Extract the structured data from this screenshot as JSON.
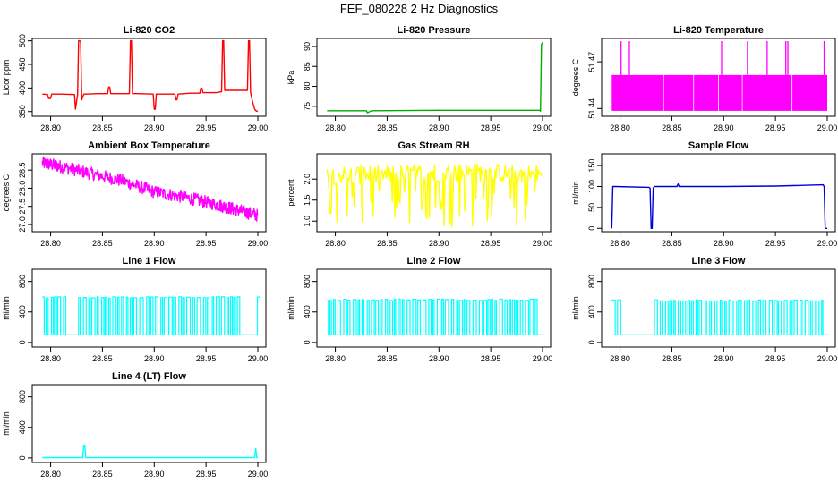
{
  "page_title": "FEF_080228  2 Hz Diagnostics",
  "x_axis": {
    "range": [
      28.79,
      29.0
    ],
    "ticks": [
      "28.80",
      "28.85",
      "28.90",
      "28.95",
      "29.00"
    ],
    "tick_values": [
      28.8,
      28.85,
      28.9,
      28.95,
      29.0
    ]
  },
  "chart_data": [
    {
      "id": "co2",
      "type": "line",
      "title": "Li-820 CO2",
      "ylabel": "Licor ppm",
      "color": "#ff0000",
      "yticks": [
        "350",
        "400",
        "450",
        "500"
      ],
      "ytick_values": [
        350,
        400,
        450,
        500
      ],
      "ylim": [
        340,
        505
      ],
      "series": [
        {
          "name": "CO2",
          "x": [
            28.792,
            28.797,
            28.798,
            28.8,
            28.801,
            28.81,
            28.823,
            28.824,
            28.826,
            28.827,
            28.828,
            28.829,
            28.83,
            28.832,
            28.833,
            28.835,
            28.845,
            28.855,
            28.856,
            28.857,
            28.858,
            28.87,
            28.876,
            28.877,
            28.878,
            28.879,
            28.885,
            28.899,
            28.9,
            28.901,
            28.902,
            28.91,
            28.92,
            28.921,
            28.922,
            28.923,
            28.935,
            28.944,
            28.945,
            28.946,
            28.947,
            28.96,
            28.965,
            28.966,
            28.967,
            28.968,
            28.98,
            28.99,
            28.991,
            28.992,
            28.993,
            28.995,
            28.997,
            28.998,
            29.0
          ],
          "y": [
            387,
            386,
            378,
            378,
            387,
            387,
            386,
            355,
            386,
            500,
            500,
            498,
            375,
            387,
            387,
            387,
            388,
            388,
            402,
            402,
            388,
            388,
            388,
            500,
            500,
            388,
            388,
            387,
            355,
            355,
            387,
            387,
            387,
            375,
            375,
            387,
            389,
            389,
            400,
            400,
            390,
            390,
            392,
            500,
            500,
            395,
            395,
            395,
            500,
            500,
            390,
            370,
            355,
            352,
            350
          ]
        }
      ]
    },
    {
      "id": "pressure",
      "type": "line",
      "title": "Li-820 Pressure",
      "ylabel": "kPa",
      "color": "#00aa00",
      "yticks": [
        "75",
        "80",
        "85",
        "90"
      ],
      "ytick_values": [
        75,
        80,
        85,
        90
      ],
      "ylim": [
        72.5,
        92
      ],
      "series": [
        {
          "name": "Pressure",
          "x": [
            28.792,
            28.83,
            28.831,
            28.835,
            28.9,
            28.997,
            28.998,
            28.999,
            29.0
          ],
          "y": [
            73.9,
            73.9,
            73.4,
            73.9,
            74.0,
            74.0,
            73.8,
            90.5,
            91.0
          ]
        }
      ]
    },
    {
      "id": "licor-temp",
      "type": "area",
      "title": "Li-820 Temperature",
      "ylabel": "degrees C",
      "color": "#ff00ff",
      "yticks": [
        "51.44",
        "51.47"
      ],
      "ytick_values": [
        51.44,
        51.47
      ],
      "ylim": [
        51.435,
        51.485
      ],
      "band": [
        51.4385,
        51.4615
      ],
      "spike_x": [
        28.801,
        28.809,
        28.898,
        28.923,
        28.942,
        28.96,
        28.962,
        28.997
      ]
    },
    {
      "id": "box-temp",
      "type": "line",
      "title": "Ambient Box Temperature",
      "ylabel": "degrees C",
      "color": "#ff00ff",
      "yticks": [
        "27.0",
        "27.5",
        "28.0",
        "28.5"
      ],
      "ytick_values": [
        27.0,
        27.5,
        28.0,
        28.5
      ],
      "ylim": [
        26.8,
        28.95
      ],
      "series": [
        {
          "name": "Box Temperature",
          "x": [
            28.792,
            28.81,
            28.84,
            28.87,
            28.9,
            28.93,
            28.96,
            28.98,
            29.0
          ],
          "y": [
            28.7,
            28.6,
            28.4,
            28.2,
            27.9,
            27.75,
            27.55,
            27.4,
            27.25
          ]
        }
      ]
    },
    {
      "id": "rh",
      "type": "line",
      "title": "Gas Stream RH",
      "ylabel": "percent",
      "color": "#ffff00",
      "yticks": [
        "1.0",
        "1.5",
        "2.0"
      ],
      "ytick_values": [
        1.0,
        1.5,
        2.0
      ],
      "ylim": [
        0.75,
        2.6
      ],
      "series": [
        {
          "name": "RH",
          "x": [
            28.792,
            28.85,
            28.9,
            28.95,
            29.0
          ],
          "y": [
            2.1,
            2.1,
            2.15,
            2.15,
            2.1
          ]
        }
      ]
    },
    {
      "id": "sample-flow",
      "type": "line",
      "title": "Sample Flow",
      "ylabel": "ml/min",
      "color": "#0000dd",
      "yticks": [
        "0",
        "50",
        "100",
        "150"
      ],
      "ytick_values": [
        0,
        50,
        100,
        150
      ],
      "ylim": [
        -8,
        178
      ],
      "series": [
        {
          "name": "Sample Flow",
          "x": [
            28.792,
            28.793,
            28.795,
            28.828,
            28.829,
            28.83,
            28.831,
            28.832,
            28.833,
            28.855,
            28.856,
            28.857,
            28.9,
            28.95,
            28.996,
            28.997,
            28.998,
            29.0
          ],
          "y": [
            0,
            100,
            100,
            98,
            96,
            0,
            0,
            96,
            100,
            100,
            106,
            100,
            100,
            101,
            104,
            100,
            0,
            0
          ]
        }
      ]
    },
    {
      "id": "line1-flow",
      "type": "line",
      "title": "Line 1 Flow",
      "ylabel": "ml/min",
      "color": "#00ffff",
      "yticks": [
        "0",
        "400",
        "800"
      ],
      "ytick_values": [
        0,
        400,
        800
      ],
      "ylim": [
        -60,
        960
      ],
      "series": [
        {
          "name": "Line 1 Flow",
          "low": 100,
          "high": 590,
          "gaps": [
            [
              28.813,
              28.823
            ],
            [
              28.985,
              28.998
            ]
          ]
        }
      ]
    },
    {
      "id": "line2-flow",
      "type": "line",
      "title": "Line 2 Flow",
      "ylabel": "ml/min",
      "color": "#00ffff",
      "yticks": [
        "0",
        "400",
        "800"
      ],
      "ytick_values": [
        0,
        400,
        800
      ],
      "ylim": [
        -60,
        960
      ],
      "series": [
        {
          "name": "Line 2 Flow",
          "low": 100,
          "high": 560,
          "gaps": [
            [
              28.995,
              29.0
            ]
          ]
        }
      ]
    },
    {
      "id": "line3-flow",
      "type": "line",
      "title": "Line 3 Flow",
      "ylabel": "ml/min",
      "color": "#00ffff",
      "yticks": [
        "0",
        "400",
        "800"
      ],
      "ytick_values": [
        0,
        400,
        800
      ],
      "ylim": [
        -60,
        960
      ],
      "series": [
        {
          "name": "Line 3 Flow",
          "low": 100,
          "high": 550,
          "gaps": [
            [
              28.8,
              28.83
            ],
            [
              28.995,
              29.0
            ]
          ]
        }
      ]
    },
    {
      "id": "line4-flow",
      "type": "line",
      "title": "Line 4 (LT) Flow",
      "ylabel": "ml/min",
      "color": "#00ffff",
      "yticks": [
        "0",
        "400",
        "800"
      ],
      "ytick_values": [
        0,
        400,
        800
      ],
      "ylim": [
        -60,
        960
      ],
      "series": [
        {
          "name": "Line 4 Flow",
          "x": [
            28.792,
            28.831,
            28.832,
            28.833,
            28.834,
            28.835,
            28.997,
            28.998,
            28.999,
            29.0
          ],
          "y": [
            5,
            5,
            160,
            150,
            5,
            5,
            5,
            120,
            5,
            5
          ]
        }
      ]
    }
  ]
}
